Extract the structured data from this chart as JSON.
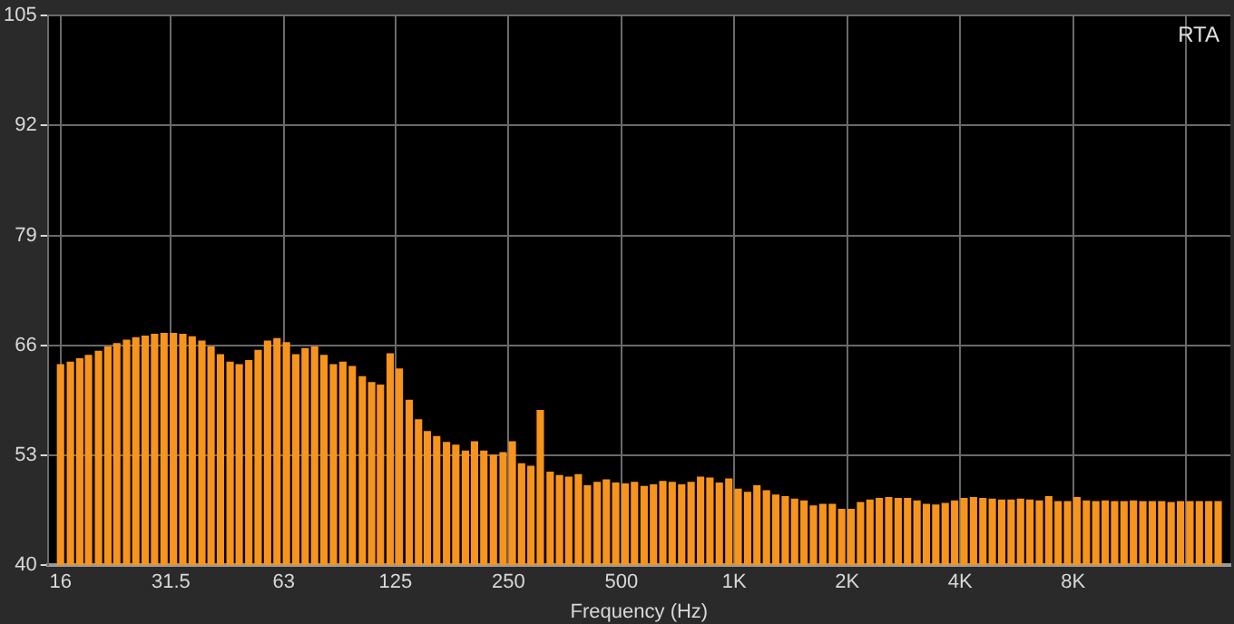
{
  "chart_data": {
    "type": "bar",
    "title": "RTA",
    "xlabel": "Frequency (Hz)",
    "log": "x",
    "grid": true,
    "color": "#f7941d",
    "x": [
      16,
      17,
      18,
      19,
      20.2,
      21.4,
      22.6,
      24,
      25.4,
      26.9,
      28.5,
      30.2,
      32,
      33.9,
      35.9,
      38.1,
      40.3,
      42.7,
      45.3,
      47.9,
      50.8,
      53.8,
      57,
      60.4,
      64,
      67.8,
      71.8,
      76.1,
      80.6,
      85.4,
      90.5,
      95.9,
      102,
      108,
      114,
      121,
      128,
      136,
      144,
      152,
      161,
      171,
      181,
      192,
      203,
      215,
      228,
      242,
      256,
      271,
      287,
      304,
      323,
      342,
      362,
      384,
      406,
      431,
      456,
      483,
      512,
      542,
      575,
      609,
      645,
      683,
      724,
      767,
      813,
      861,
      912,
      967,
      1024,
      1085,
      1149,
      1218,
      1290,
      1367,
      1448,
      1534,
      1625,
      1722,
      1825,
      1933,
      2048,
      2170,
      2299,
      2435,
      2580,
      2734,
      2896,
      3069,
      3251,
      3444,
      3649,
      3866,
      4096,
      4340,
      4598,
      4871,
      5161,
      5468,
      5793,
      6137,
      6502,
      6889,
      7298,
      7732,
      8192,
      8679,
      9195,
      9742,
      10321,
      10935,
      11585,
      12274,
      13004,
      13777,
      14596,
      15464,
      16384,
      17358,
      18390,
      19484
    ],
    "values": [
      63.7,
      64.0,
      64.4,
      64.8,
      65.3,
      65.8,
      66.2,
      66.6,
      66.9,
      67.1,
      67.3,
      67.4,
      67.4,
      67.3,
      67.0,
      66.5,
      65.8,
      64.9,
      64.0,
      63.7,
      64.2,
      65.4,
      66.5,
      66.8,
      66.3,
      64.9,
      65.6,
      65.8,
      64.8,
      63.7,
      64.0,
      63.5,
      62.3,
      61.6,
      61.3,
      65.0,
      63.2,
      59.5,
      57.2,
      55.8,
      55.2,
      54.5,
      54.2,
      53.5,
      54.6,
      53.5,
      53.0,
      53.3,
      54.6,
      52.0,
      51.7,
      58.3,
      51.0,
      50.6,
      50.4,
      50.7,
      49.4,
      49.8,
      50.1,
      49.7,
      49.6,
      49.8,
      49.3,
      49.5,
      49.9,
      49.8,
      49.5,
      49.8,
      50.4,
      50.3,
      49.7,
      50.2,
      49.0,
      48.6,
      49.4,
      48.8,
      48.3,
      48.1,
      47.8,
      47.6,
      47.0,
      47.2,
      47.2,
      46.6,
      46.6,
      47.4,
      47.7,
      47.9,
      48.0,
      47.9,
      47.9,
      47.6,
      47.2,
      47.1,
      47.3,
      47.6,
      47.9,
      48.0,
      47.9,
      47.8,
      47.7,
      47.7,
      47.8,
      47.7,
      47.6,
      48.1,
      47.5,
      47.5,
      48.0,
      47.6,
      47.5,
      47.6,
      47.5,
      47.5,
      47.6,
      47.5,
      47.5,
      47.5,
      47.4,
      47.5,
      47.5,
      47.5,
      47.5,
      47.5
    ],
    "xlim": [
      14.8,
      21000
    ],
    "xticks": [
      16,
      31.5,
      63,
      125,
      250,
      500,
      {
        "value": 1000,
        "label": "1K"
      },
      {
        "value": 2000,
        "label": "2K"
      },
      {
        "value": 4000,
        "label": "4K"
      },
      {
        "value": 8000,
        "label": "8K"
      },
      {
        "value": 16000,
        "label": null
      }
    ],
    "ylim": [
      40,
      105
    ],
    "yticks": [
      40,
      53,
      66,
      79,
      92,
      105
    ]
  }
}
